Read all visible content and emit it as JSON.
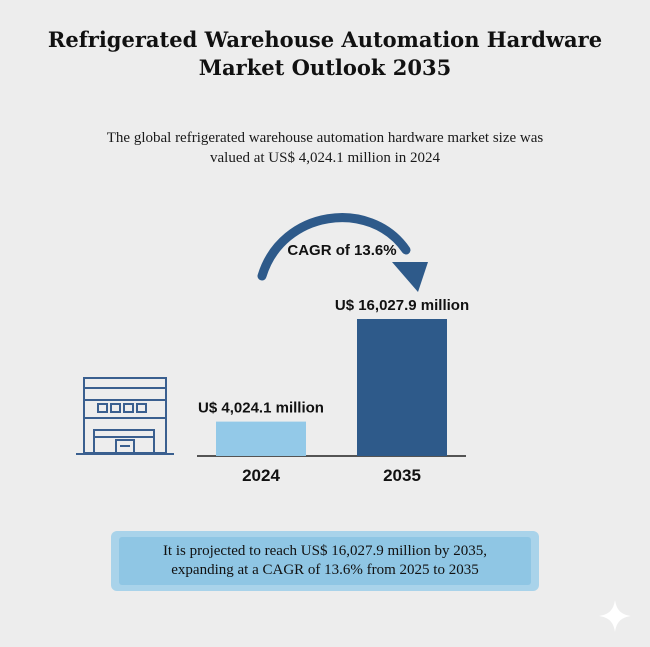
{
  "title": {
    "line1": "Refrigerated Warehouse Automation Hardware",
    "line2": "Market Outlook 2035"
  },
  "subtitle": {
    "line1": "The global refrigerated warehouse automation hardware market size was",
    "line2": "valued at US$ 4,024.1 million in 2024"
  },
  "chart_data": {
    "type": "bar",
    "categories": [
      "2024",
      "2035"
    ],
    "values": [
      4024.1,
      16027.9
    ],
    "data_labels": [
      "U$ 4,024.1 million",
      "U$ 16,027.9 million"
    ],
    "annotation": "CAGR of 13.6%",
    "colors": [
      "#93c9e8",
      "#2e5a8a"
    ],
    "axis_color": "#222222",
    "grid": false,
    "legend": "none"
  },
  "note": {
    "line1": "It is projected to reach US$ 16,027.9 million by 2035,",
    "line2": "expanding at a CAGR of 13.6% from 2025 to 2035"
  },
  "icons": {
    "warehouse": "warehouse-icon",
    "sparkle": "sparkle-icon"
  },
  "accent_colors": {
    "arrow": "#2e5a8a",
    "icon_stroke": "#3a5f8f"
  }
}
